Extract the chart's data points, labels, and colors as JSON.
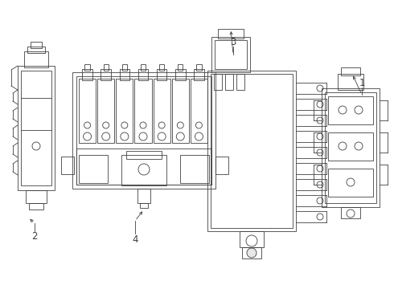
{
  "bg": "#ffffff",
  "lc": "#404040",
  "lw": 0.6,
  "lw2": 0.4,
  "fs": 8.5
}
